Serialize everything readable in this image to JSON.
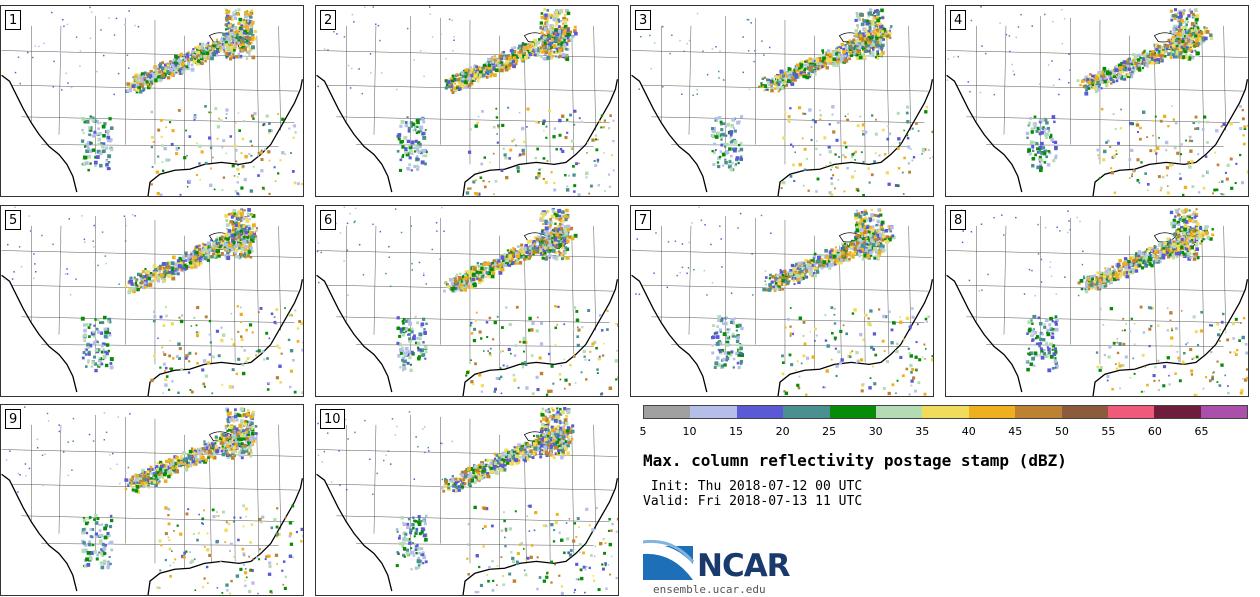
{
  "panels": [
    {
      "label": "1"
    },
    {
      "label": "2"
    },
    {
      "label": "3"
    },
    {
      "label": "4"
    },
    {
      "label": "5"
    },
    {
      "label": "6"
    },
    {
      "label": "7"
    },
    {
      "label": "8"
    },
    {
      "label": "9"
    },
    {
      "label": "10"
    }
  ],
  "colorbar": {
    "colors": [
      "#a0a0a0",
      "#b4bee8",
      "#5a5ad6",
      "#4a9090",
      "#078c07",
      "#b4dcb4",
      "#f0dc5a",
      "#eeb01e",
      "#bc8232",
      "#8c5a3c",
      "#f05a7a",
      "#6e1e3c",
      "#aa50aa"
    ],
    "ticks": [
      "5",
      "10",
      "15",
      "20",
      "25",
      "30",
      "35",
      "40",
      "45",
      "50",
      "55",
      "60",
      "65"
    ]
  },
  "title": "Max. column reflectivity postage stamp (dBZ)",
  "init": " Init: Thu 2018-07-12 00 UTC",
  "valid": "Valid: Fri 2018-07-13 11 UTC",
  "logo": {
    "name": "NCAR",
    "url": "ensemble.ucar.edu"
  }
}
